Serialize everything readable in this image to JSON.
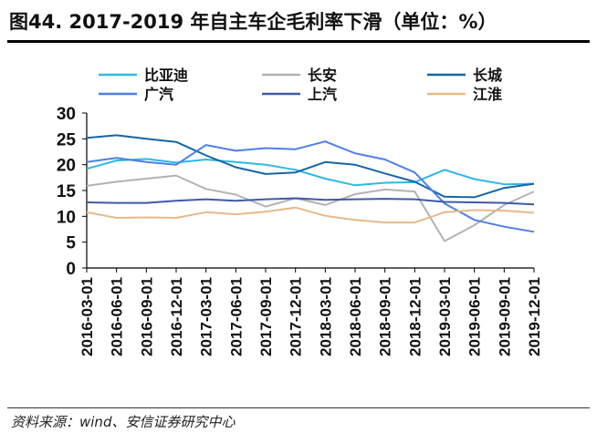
{
  "title": "图44. 2017-2019 年自主车企毛利率下滑（单位：%）",
  "source": "资料来源：wind、安信证券研究中心",
  "chart_data": {
    "type": "line",
    "title": "图44. 2017-2019 年自主车企毛利率下滑（单位：%）",
    "xlabel": "",
    "ylabel": "",
    "ylim": [
      0,
      30
    ],
    "yticks": [
      0,
      5,
      10,
      15,
      20,
      25,
      30
    ],
    "legend_position": "top",
    "categories": [
      "2016-03-01",
      "2016-06-01",
      "2016-09-01",
      "2016-12-01",
      "2017-03-01",
      "2017-06-01",
      "2017-09-01",
      "2017-12-01",
      "2018-03-01",
      "2018-06-01",
      "2018-09-01",
      "2018-12-01",
      "2019-03-01",
      "2019-06-01",
      "2019-09-01",
      "2019-12-01"
    ],
    "series": [
      {
        "name": "比亚迪",
        "color": "#2eb8e6",
        "values": [
          19.2,
          20.8,
          21.1,
          20.4,
          21.0,
          20.5,
          20.0,
          19.0,
          17.3,
          16.0,
          16.5,
          16.6,
          19.0,
          17.2,
          16.2,
          16.3
        ]
      },
      {
        "name": "长安",
        "color": "#b3b3b3",
        "values": [
          15.9,
          16.7,
          17.3,
          17.9,
          15.3,
          14.2,
          11.9,
          13.5,
          12.2,
          14.3,
          15.2,
          14.8,
          5.2,
          8.3,
          12.2,
          14.8
        ]
      },
      {
        "name": "长城",
        "color": "#1565a8",
        "values": [
          25.2,
          25.7,
          25.0,
          24.4,
          21.8,
          19.5,
          18.2,
          18.5,
          20.5,
          20.0,
          18.3,
          16.7,
          13.8,
          13.7,
          15.5,
          16.3
        ]
      },
      {
        "name": "广汽",
        "color": "#4d7fe6",
        "values": [
          20.5,
          21.3,
          20.5,
          20.0,
          23.8,
          22.7,
          23.2,
          23.0,
          24.5,
          22.2,
          21.0,
          18.5,
          12.5,
          9.3,
          8.0,
          7.0
        ]
      },
      {
        "name": "上汽",
        "color": "#3f5aa8",
        "values": [
          12.7,
          12.6,
          12.6,
          13.0,
          13.3,
          13.0,
          13.3,
          13.5,
          13.2,
          13.3,
          13.4,
          13.3,
          12.8,
          12.7,
          12.6,
          12.3
        ]
      },
      {
        "name": "江淮",
        "color": "#e6b98a",
        "values": [
          10.8,
          9.7,
          9.8,
          9.7,
          10.8,
          10.4,
          10.9,
          11.7,
          10.1,
          9.3,
          8.8,
          8.8,
          10.8,
          11.2,
          11.1,
          10.7
        ]
      }
    ]
  }
}
